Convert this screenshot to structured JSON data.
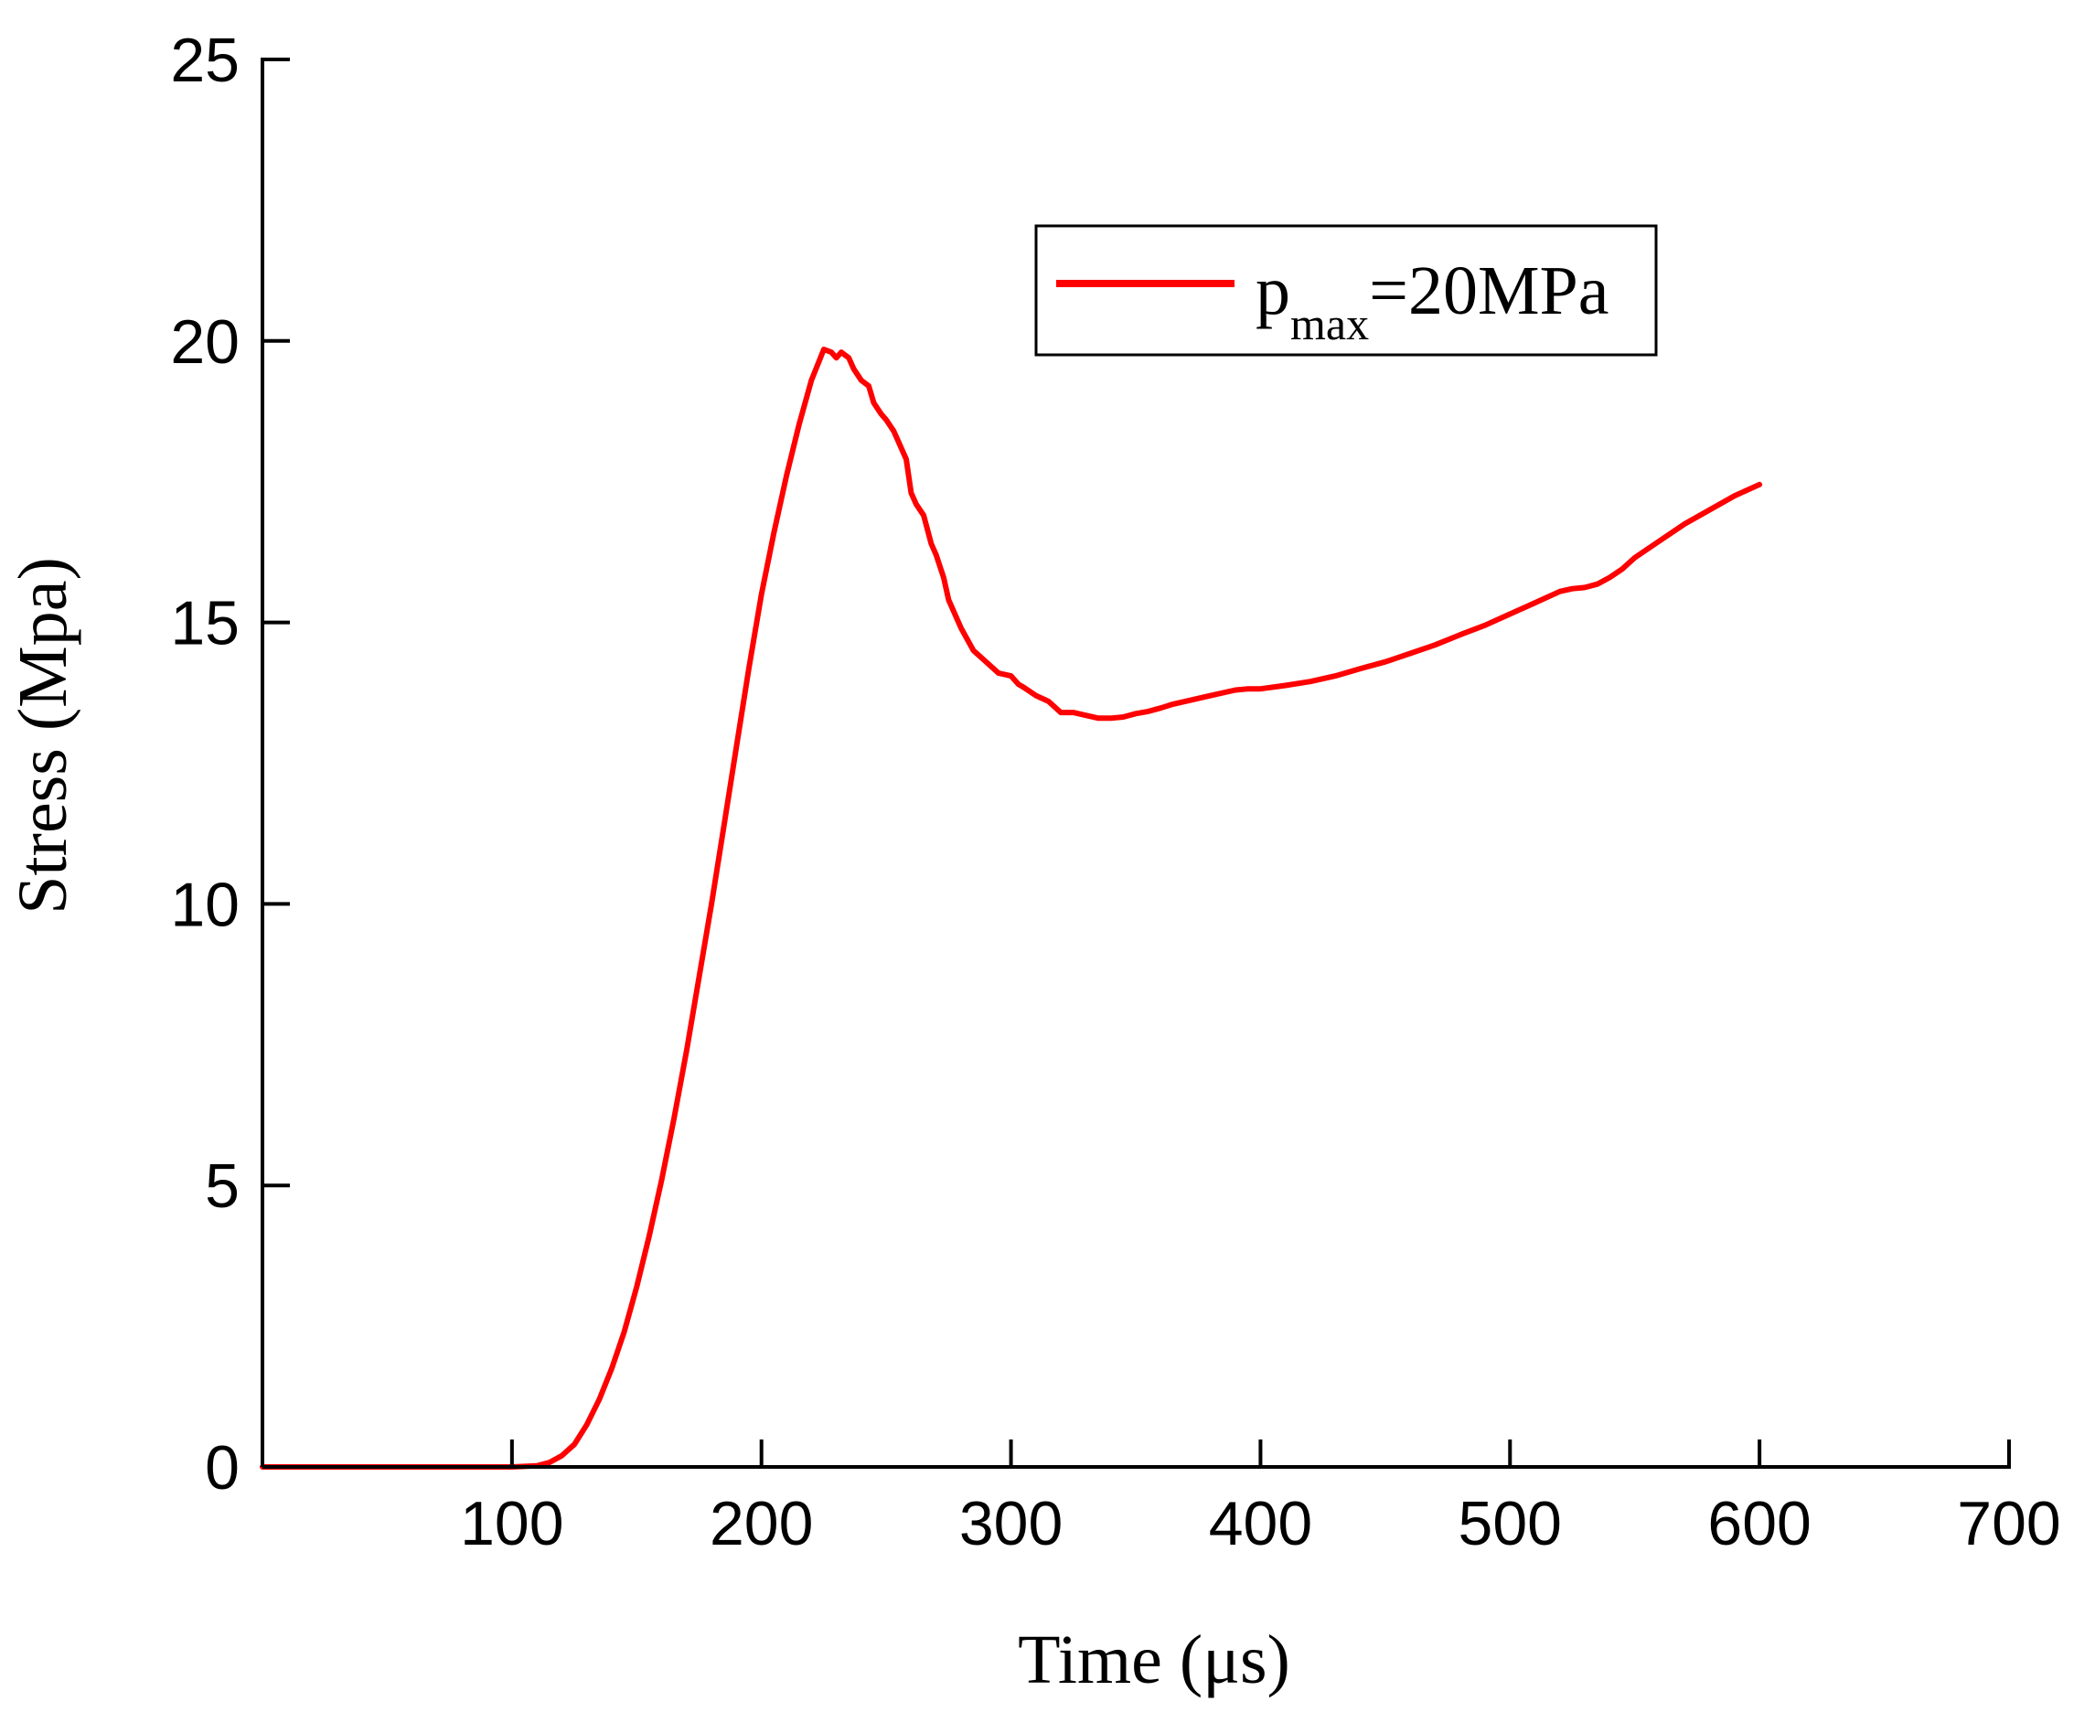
{
  "chart_data": {
    "type": "line",
    "xlabel": "Time (μs)",
    "ylabel": "Stress (Mpa)",
    "xlim": [
      0,
      700
    ],
    "ylim": [
      0,
      25
    ],
    "xticks": [
      100,
      200,
      300,
      400,
      500,
      600,
      700
    ],
    "yticks": [
      0,
      5,
      10,
      15,
      20,
      25
    ],
    "grid": false,
    "legend_position": "top-right",
    "line_color": "#ff0000",
    "legend": {
      "base": "p",
      "sub": "max",
      "rest": "=20MPa"
    },
    "series": [
      {
        "name": "p_max=20MPa",
        "x": [
          0,
          50,
          100,
          110,
          115,
          120,
          125,
          130,
          135,
          140,
          145,
          150,
          155,
          160,
          165,
          170,
          175,
          180,
          185,
          190,
          195,
          200,
          205,
          210,
          215,
          220,
          225,
          228,
          230,
          232,
          235,
          237,
          240,
          243,
          245,
          248,
          250,
          253,
          255,
          258,
          260,
          262,
          265,
          268,
          270,
          273,
          275,
          280,
          285,
          290,
          295,
          300,
          303,
          305,
          310,
          315,
          320,
          325,
          330,
          335,
          340,
          345,
          350,
          355,
          360,
          365,
          370,
          375,
          380,
          385,
          390,
          395,
          400,
          410,
          420,
          430,
          440,
          450,
          460,
          470,
          480,
          490,
          500,
          510,
          520,
          525,
          530,
          535,
          540,
          545,
          550,
          560,
          570,
          580,
          590,
          600
        ],
        "y": [
          0,
          0,
          0,
          0.02,
          0.08,
          0.2,
          0.4,
          0.75,
          1.2,
          1.75,
          2.4,
          3.2,
          4.1,
          5.1,
          6.2,
          7.4,
          8.7,
          10.0,
          11.4,
          12.8,
          14.2,
          15.5,
          16.6,
          17.6,
          18.5,
          19.3,
          19.85,
          19.8,
          19.7,
          19.8,
          19.7,
          19.5,
          19.3,
          19.2,
          18.9,
          18.7,
          18.6,
          18.4,
          18.2,
          17.9,
          17.3,
          17.1,
          16.9,
          16.4,
          16.2,
          15.8,
          15.4,
          14.9,
          14.5,
          14.3,
          14.1,
          14.05,
          13.9,
          13.85,
          13.7,
          13.6,
          13.4,
          13.4,
          13.35,
          13.3,
          13.3,
          13.32,
          13.38,
          13.42,
          13.48,
          13.55,
          13.6,
          13.65,
          13.7,
          13.75,
          13.8,
          13.82,
          13.82,
          13.88,
          13.95,
          14.05,
          14.18,
          14.3,
          14.45,
          14.6,
          14.78,
          14.95,
          15.15,
          15.35,
          15.55,
          15.6,
          15.62,
          15.68,
          15.8,
          15.95,
          16.15,
          16.45,
          16.75,
          17.0,
          17.25,
          17.45
        ]
      }
    ]
  }
}
